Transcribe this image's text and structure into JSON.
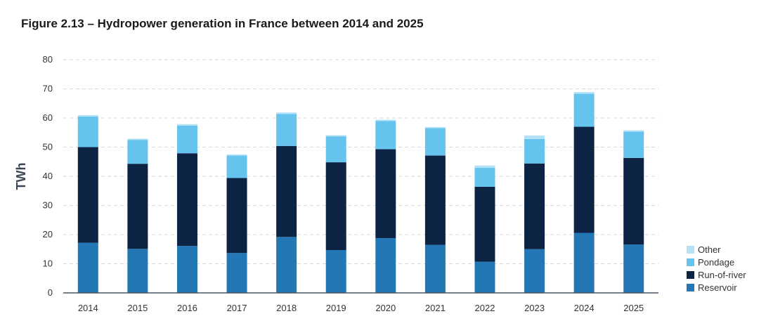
{
  "chart_data": {
    "type": "bar",
    "stacked": true,
    "title": "Figure 2.13 – Hydropower generation in France between 2014 and 2025",
    "xlabel": "",
    "ylabel": "TWh",
    "ylim": [
      0,
      80
    ],
    "yticks": [
      0,
      10,
      20,
      30,
      40,
      50,
      60,
      70,
      80
    ],
    "grid": true,
    "legend_position": "bottom-right",
    "categories": [
      "2014",
      "2015",
      "2016",
      "2017",
      "2018",
      "2019",
      "2020",
      "2021",
      "2022",
      "2023",
      "2024",
      "2025"
    ],
    "series": [
      {
        "name": "Reservoir",
        "color": "#2277b4",
        "values": [
          17.2,
          15.1,
          16.1,
          13.7,
          19.2,
          14.7,
          18.8,
          16.5,
          10.7,
          15.0,
          20.6,
          16.6
        ]
      },
      {
        "name": "Run-of-river",
        "color": "#0d2344",
        "values": [
          32.8,
          29.2,
          31.8,
          25.7,
          31.2,
          30.1,
          30.5,
          30.6,
          25.7,
          29.4,
          36.4,
          29.7
        ]
      },
      {
        "name": "Pondage",
        "color": "#66c3ee",
        "values": [
          10.5,
          8.2,
          9.5,
          7.7,
          11.0,
          8.9,
          9.7,
          9.4,
          6.5,
          8.4,
          11.3,
          9.0
        ]
      },
      {
        "name": "Other",
        "color": "#b3e2f6",
        "values": [
          0.5,
          0.4,
          0.5,
          0.4,
          0.5,
          0.4,
          0.4,
          0.4,
          0.8,
          1.2,
          0.6,
          0.5
        ]
      }
    ]
  }
}
